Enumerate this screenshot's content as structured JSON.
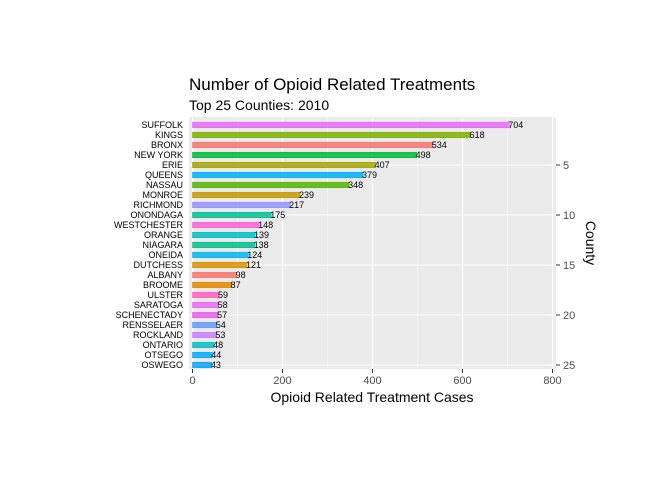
{
  "chart_data": {
    "type": "bar",
    "orientation": "horizontal",
    "title": "Number of Opioid Related Treatments",
    "subtitle": "Top 25 Counties: 2010",
    "xlabel": "Opioid Related Treatment Cases",
    "ylabel": "County",
    "xlim": [
      0,
      800
    ],
    "x_ticks": [
      0,
      200,
      400,
      600,
      800
    ],
    "y_ticks_right": [
      5,
      10,
      15,
      20,
      25
    ],
    "grid": true,
    "legend": "none",
    "categories": [
      "SUFFOLK",
      "KINGS",
      "BRONX",
      "NEW YORK",
      "ERIE",
      "QUEENS",
      "NASSAU",
      "MONROE",
      "RICHMOND",
      "ONONDAGA",
      "WESTCHESTER",
      "ORANGE",
      "NIAGARA",
      "ONEIDA",
      "DUTCHESS",
      "ALBANY",
      "BROOME",
      "ULSTER",
      "SARATOGA",
      "SCHENECTADY",
      "RENSSELAER",
      "ROCKLAND",
      "ONTARIO",
      "OTSEGO",
      "OSWEGO"
    ],
    "values": [
      704,
      618,
      534,
      498,
      407,
      379,
      348,
      239,
      217,
      175,
      148,
      139,
      138,
      124,
      121,
      98,
      87,
      59,
      58,
      57,
      54,
      53,
      48,
      44,
      43
    ],
    "labels": [
      "704",
      "618",
      "534",
      "498",
      "407",
      "379",
      "348",
      "239",
      "217",
      "175",
      "148",
      "139",
      "138",
      "124",
      "121",
      "98",
      "87",
      "59",
      "58",
      "57",
      "54",
      "53",
      "48",
      "44",
      "43"
    ],
    "colors": [
      "#e76bf3",
      "#7cae00",
      "#f8766d",
      "#00ba38",
      "#a3a500",
      "#00b0f6",
      "#53b400",
      "#c49a00",
      "#9590ff",
      "#00c094",
      "#fb61d7",
      "#00bfc4",
      "#00c08b",
      "#00b6eb",
      "#d89000",
      "#f8766d",
      "#e58700",
      "#ff62bc",
      "#e76bf3",
      "#ea5ee8",
      "#619cff",
      "#c77cff",
      "#00bfc4",
      "#00a9ff",
      "#06a4ff"
    ]
  }
}
